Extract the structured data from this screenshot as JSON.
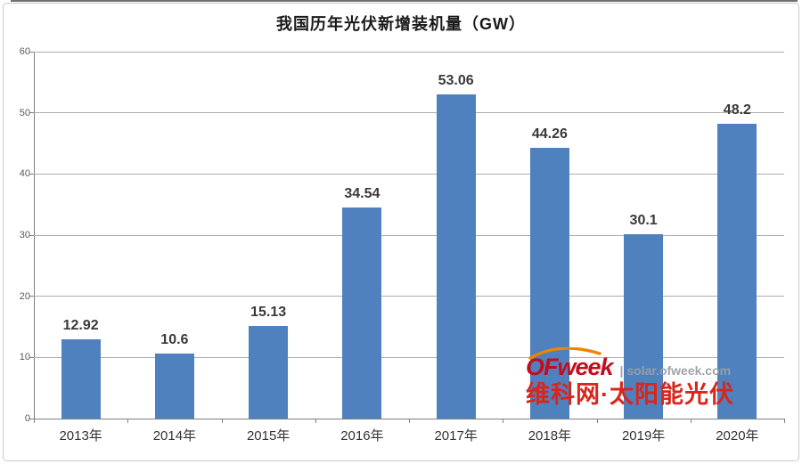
{
  "chart_data": {
    "type": "bar",
    "title": "我国历年光伏新增装机量（GW）",
    "categories": [
      "2013年",
      "2014年",
      "2015年",
      "2016年",
      "2017年",
      "2018年",
      "2019年",
      "2020年"
    ],
    "values": [
      12.92,
      10.6,
      15.13,
      34.54,
      53.06,
      44.26,
      30.1,
      48.2
    ],
    "value_labels": [
      "12.92",
      "10.6",
      "15.13",
      "34.54",
      "53.06",
      "44.26",
      "30.1",
      "48.2"
    ],
    "xlabel": "",
    "ylabel": "",
    "ylim": [
      0,
      60
    ],
    "yticks": [
      0,
      10,
      20,
      30,
      40,
      50,
      60
    ],
    "grid": true,
    "legend": "none",
    "bar_color": "#4e81bd"
  },
  "watermark": {
    "brand": "OFweek",
    "separator": "|",
    "site": "solar.ofweek.com",
    "chinese": "维科网·太阳能光伏",
    "brand_color": "#c30d1e",
    "chinese_color": "#da251c",
    "arc_color": "#f08300",
    "site_color": "#9aa0a6"
  },
  "colors": {
    "gridline": "#adadad",
    "axis": "#7f7f7f",
    "background": "#ffffff",
    "border": "#c9c9c9"
  }
}
